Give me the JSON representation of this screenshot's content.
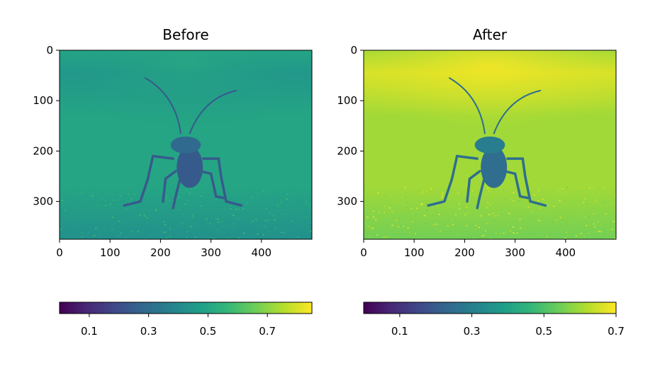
{
  "chart_data": [
    {
      "type": "heatmap",
      "title": "Before",
      "xlabel": "",
      "ylabel": "",
      "x_ticks": [
        0,
        100,
        200,
        300,
        400
      ],
      "y_ticks": [
        0,
        100,
        200,
        300
      ],
      "xlim": [
        0,
        500
      ],
      "ylim": [
        375,
        0
      ],
      "colormap": "viridis",
      "colorbar": {
        "range": [
          0.0,
          0.85
        ],
        "ticks": [
          0.1,
          0.3,
          0.5,
          0.7
        ],
        "orientation": "horizontal",
        "placement": "below"
      },
      "levels": {
        "background": 0.5,
        "top_glow": 0.45,
        "ground": 0.43,
        "speckle": 0.52,
        "subject": 0.24
      }
    },
    {
      "type": "heatmap",
      "title": "After",
      "xlabel": "",
      "ylabel": "",
      "x_ticks": [
        0,
        100,
        200,
        300,
        400
      ],
      "y_ticks": [
        0,
        100,
        200,
        300
      ],
      "xlim": [
        0,
        500
      ],
      "ylim": [
        375,
        0
      ],
      "colormap": "viridis",
      "colorbar": {
        "range": [
          0.0,
          0.7
        ],
        "ticks": [
          0.1,
          0.3,
          0.5,
          0.7
        ],
        "orientation": "horizontal",
        "placement": "below"
      },
      "levels": {
        "background": 0.6,
        "top_glow": 0.66,
        "ground": 0.55,
        "speckle": 0.62,
        "subject": 0.25
      }
    }
  ],
  "colors": {
    "viridis": [
      "#440154",
      "#482878",
      "#3e4989",
      "#31688e",
      "#26828e",
      "#1f9e89",
      "#35b779",
      "#6ece58",
      "#b5de2b",
      "#fde725"
    ]
  }
}
